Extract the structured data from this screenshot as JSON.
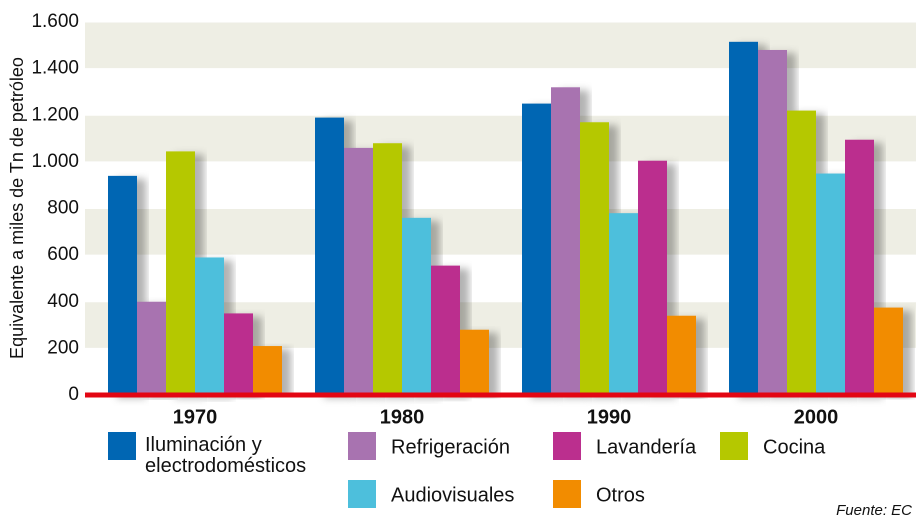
{
  "chart_data": {
    "type": "bar",
    "y_label": "Equivalente a miles de Tn de petróleo",
    "annotation": "Fuente: EC",
    "categories": [
      "1970",
      "1980",
      "1990",
      "2000"
    ],
    "series": [
      {
        "name": "Iluminación y electrodomésticos",
        "color": "#0066b3",
        "values": [
          940,
          1190,
          1250,
          1515
        ]
      },
      {
        "name": "Refrigeración",
        "color": "#a873b0",
        "values": [
          400,
          1060,
          1320,
          1480
        ]
      },
      {
        "name": "Cocina",
        "color": "#b5c800",
        "values": [
          1045,
          1080,
          1170,
          1220
        ]
      },
      {
        "name": "Audiovisuales",
        "color": "#4dbfdc",
        "values": [
          590,
          760,
          780,
          950
        ]
      },
      {
        "name": "Lavandería",
        "color": "#bb2f8e",
        "values": [
          350,
          555,
          1005,
          1095
        ]
      },
      {
        "name": "Otros",
        "color": "#f28c00",
        "values": [
          210,
          280,
          340,
          375
        ]
      }
    ],
    "ylim": [
      0,
      1600
    ],
    "yticks": [
      0,
      200,
      400,
      600,
      800,
      {
        "value": 1000,
        "label": "1.000"
      },
      {
        "value": 1200,
        "label": "1.200"
      },
      {
        "value": 1400,
        "label": "1.400"
      },
      {
        "value": 1600,
        "label": "1.600"
      }
    ],
    "grid": true,
    "baseline_color": "#e30613"
  }
}
